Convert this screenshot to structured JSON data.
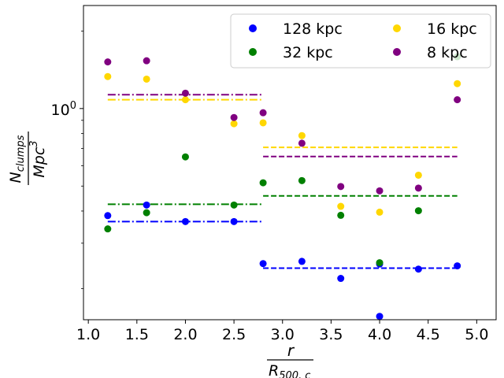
{
  "chart_data": {
    "type": "scatter",
    "xlabel": {
      "numerator": "r",
      "denominator_main": "R",
      "denominator_sub": "500, c"
    },
    "ylabel": {
      "numerator_main": "N",
      "numerator_sub": "clumps",
      "denominator_main": "Mpc",
      "denominator_sup": "3"
    },
    "xlim": [
      0.95,
      5.2
    ],
    "ylim_log10": [
      -0.82,
      0.4
    ],
    "x_ticks": [
      1.0,
      1.5,
      2.0,
      2.5,
      3.0,
      3.5,
      4.0,
      4.5,
      5.0
    ],
    "x_tick_labels": [
      "1.0",
      "1.5",
      "2.0",
      "2.5",
      "3.0",
      "3.5",
      "4.0",
      "4.5",
      "5.0"
    ],
    "y_tick_labels": [
      {
        "base": "10",
        "exp": "0",
        "value": 1.0
      }
    ],
    "legend_position": "top-right",
    "series": [
      {
        "name": "128 kpc",
        "color": "#0000ff",
        "x": [
          1.2,
          1.6,
          2.0,
          2.5,
          2.8,
          3.2,
          3.6,
          4.0,
          4.0,
          4.4,
          4.8
        ],
        "y": [
          0.384,
          0.422,
          0.364,
          0.364,
          0.25,
          0.255,
          0.219,
          0.249,
          0.156,
          0.238,
          0.245
        ],
        "ref_lines": [
          {
            "x_start": 1.2,
            "x_end": 2.8,
            "y": 0.364,
            "style": "dashdot"
          },
          {
            "x_start": 2.8,
            "x_end": 4.8,
            "y": 0.24,
            "style": "dashed"
          }
        ]
      },
      {
        "name": "32 kpc",
        "color": "#008000",
        "x": [
          1.2,
          1.6,
          2.0,
          2.5,
          2.8,
          3.2,
          3.6,
          4.0,
          4.4,
          4.8
        ],
        "y": [
          0.341,
          0.394,
          0.649,
          0.422,
          0.515,
          0.525,
          0.385,
          0.252,
          0.401,
          1.589
        ],
        "ref_lines": [
          {
            "x_start": 1.2,
            "x_end": 2.8,
            "y": 0.425,
            "style": "dashdot"
          },
          {
            "x_start": 2.8,
            "x_end": 4.8,
            "y": 0.458,
            "style": "dashed"
          }
        ]
      },
      {
        "name": "16 kpc",
        "color": "#ffd700",
        "x": [
          1.2,
          1.6,
          2.0,
          2.5,
          2.8,
          3.2,
          3.6,
          4.0,
          4.4,
          4.8
        ],
        "y": [
          1.331,
          1.301,
          1.082,
          0.873,
          0.88,
          0.785,
          0.417,
          0.396,
          0.551,
          1.249
        ],
        "ref_lines": [
          {
            "x_start": 1.2,
            "x_end": 2.8,
            "y": 1.082,
            "style": "dashdot"
          },
          {
            "x_start": 2.8,
            "x_end": 4.8,
            "y": 0.707,
            "style": "dashed"
          }
        ]
      },
      {
        "name": "8 kpc",
        "color": "#800080",
        "x": [
          1.2,
          1.6,
          2.0,
          2.5,
          2.8,
          3.2,
          3.6,
          4.0,
          4.4,
          4.8
        ],
        "y": [
          1.517,
          1.533,
          1.147,
          0.923,
          0.963,
          0.733,
          0.498,
          0.479,
          0.491,
          1.082
        ],
        "ref_lines": [
          {
            "x_start": 1.2,
            "x_end": 2.8,
            "y": 1.132,
            "style": "dashdot"
          },
          {
            "x_start": 2.8,
            "x_end": 4.8,
            "y": 0.651,
            "style": "dashed"
          }
        ]
      }
    ]
  }
}
